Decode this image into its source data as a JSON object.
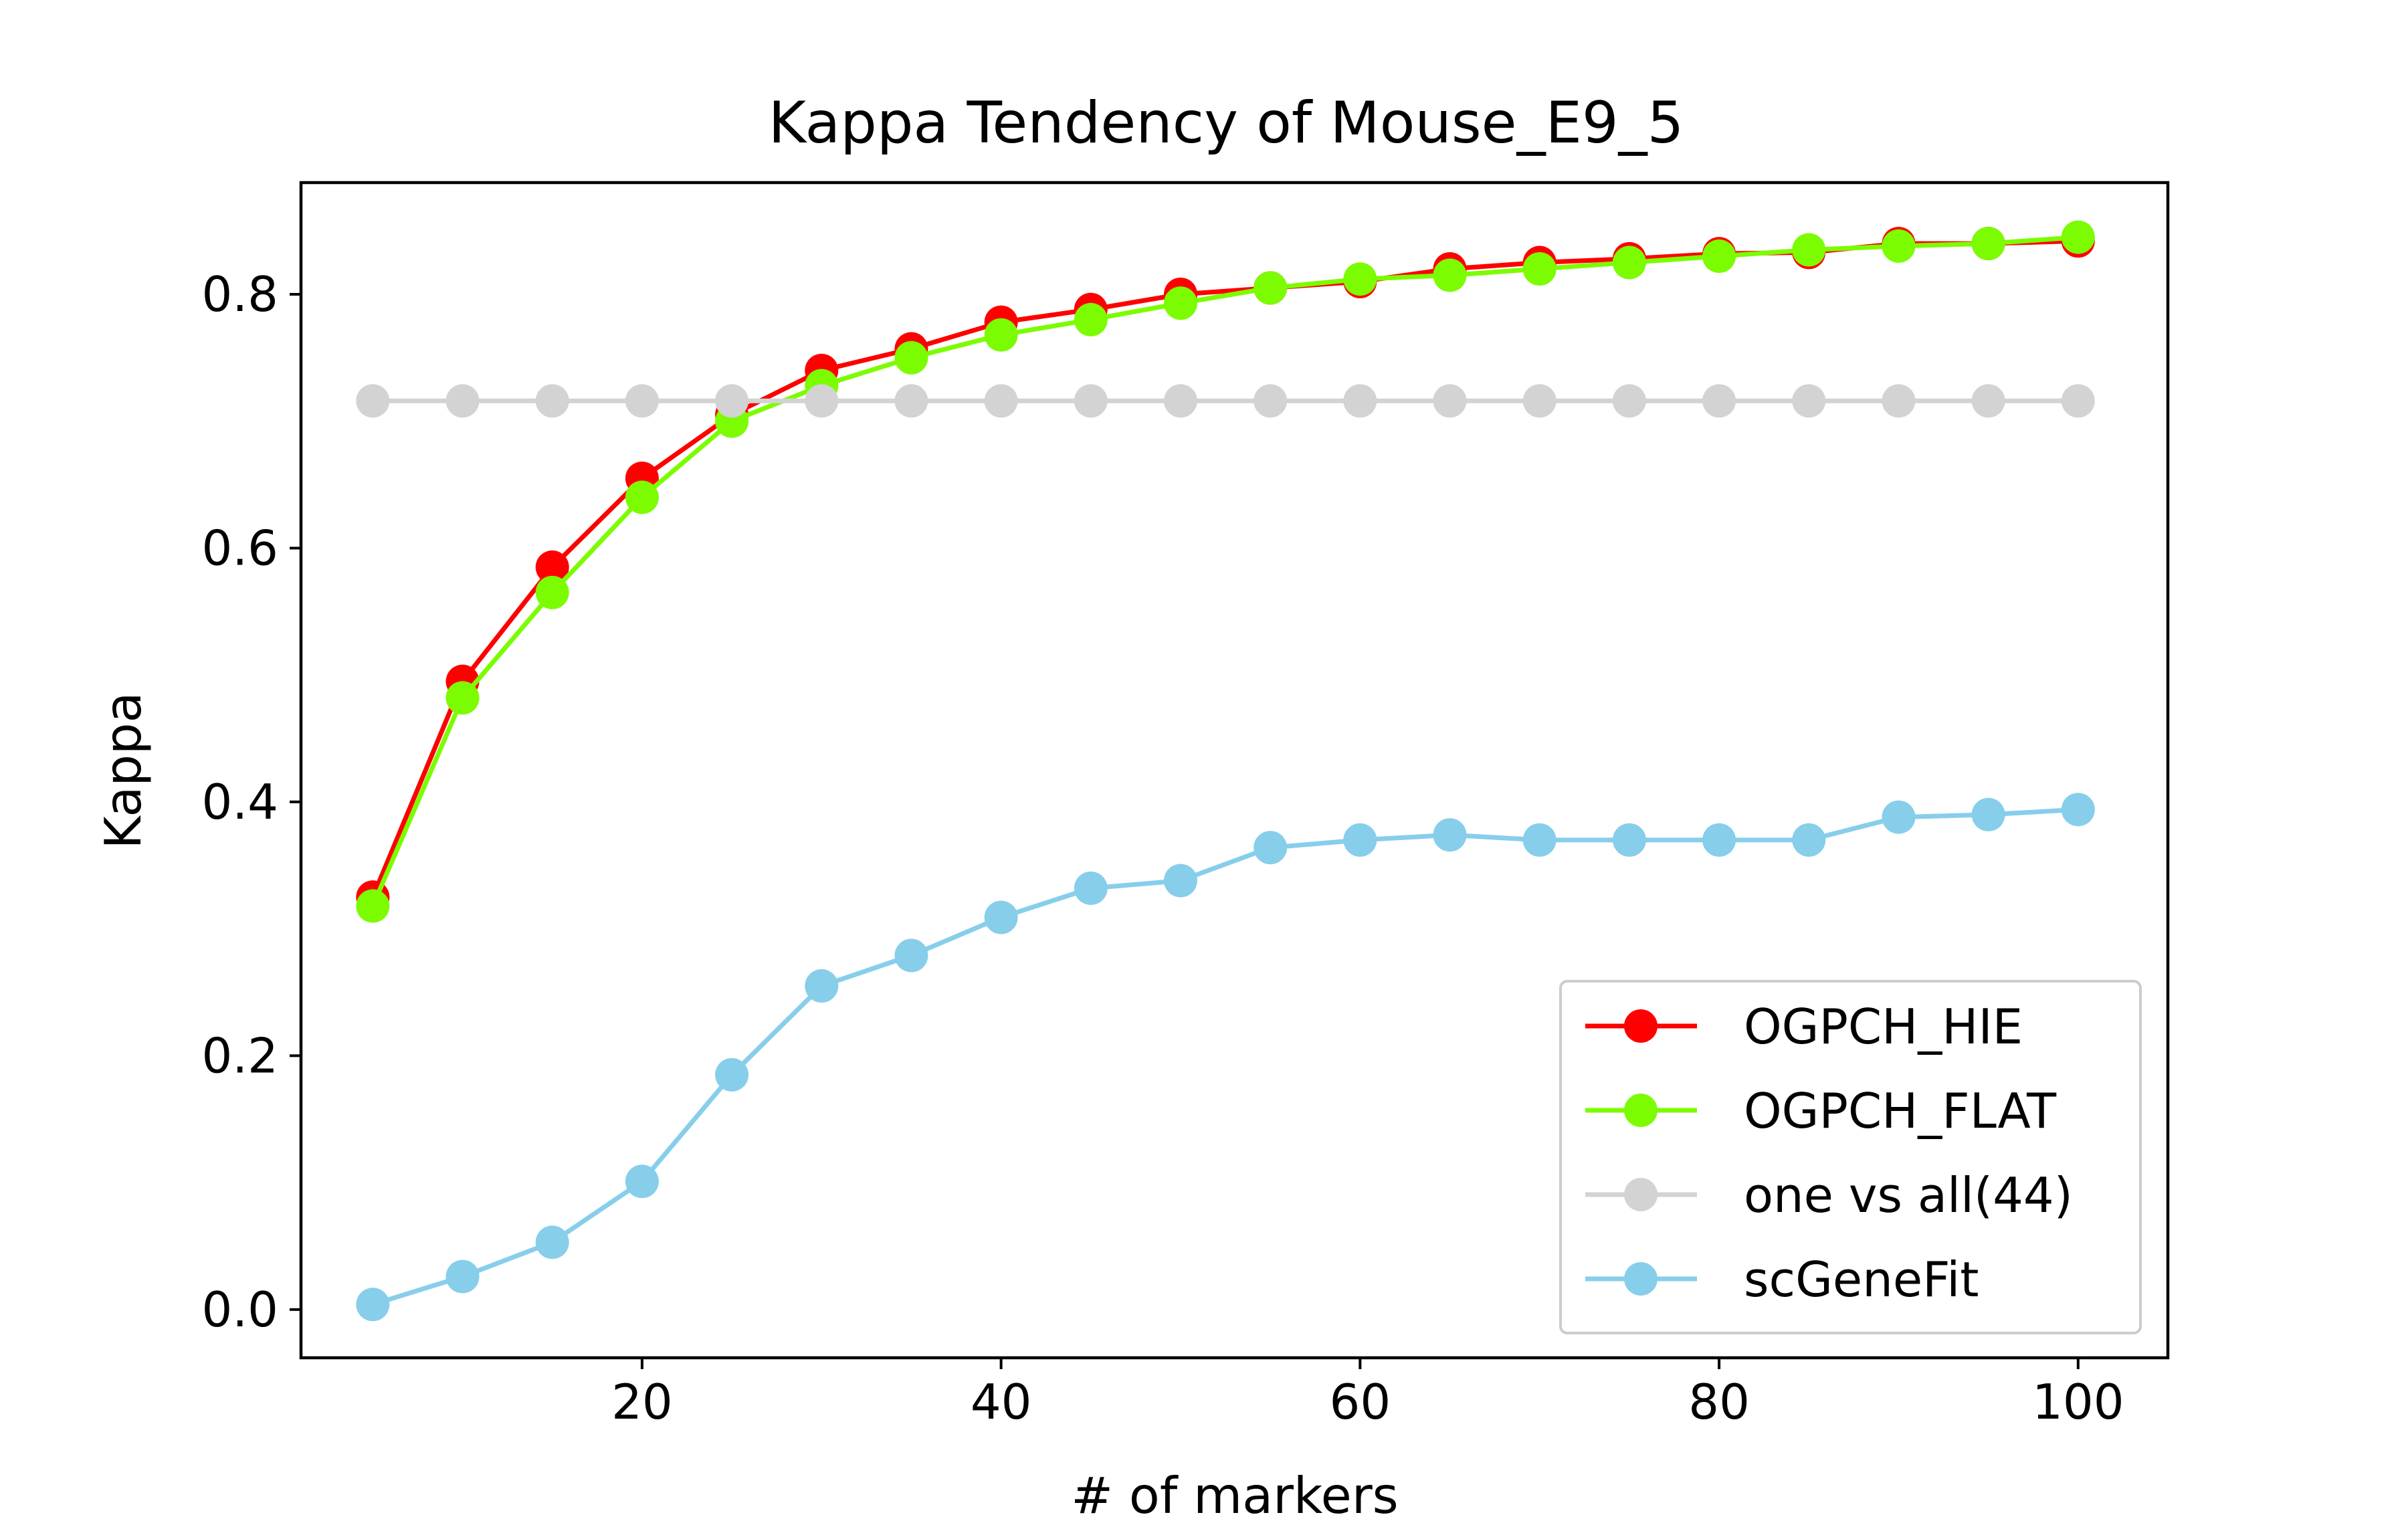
{
  "chart_data": {
    "type": "line",
    "title": "Kappa Tendency of Mouse_E9_5",
    "xlabel": "# of markers",
    "ylabel": "Kappa",
    "xlim": [
      1,
      105
    ],
    "ylim": [
      -0.038,
      0.888
    ],
    "x_ticks": [
      20,
      40,
      60,
      80,
      100
    ],
    "y_ticks": [
      0.0,
      0.2,
      0.4,
      0.6,
      0.8
    ],
    "x_tick_labels": [
      "20",
      "40",
      "60",
      "80",
      "100"
    ],
    "y_tick_labels": [
      "0.0",
      "0.2",
      "0.4",
      "0.6",
      "0.8"
    ],
    "grid": false,
    "legend_position": "lower-right",
    "x": [
      5,
      10,
      15,
      20,
      25,
      30,
      35,
      40,
      45,
      50,
      55,
      60,
      65,
      70,
      75,
      80,
      85,
      90,
      95,
      100
    ],
    "series": [
      {
        "name": "OGPCH_HIE",
        "color": "#ff0000",
        "values": [
          0.325,
          0.495,
          0.585,
          0.655,
          0.705,
          0.74,
          0.757,
          0.778,
          0.788,
          0.8,
          0.805,
          0.81,
          0.82,
          0.825,
          0.828,
          0.832,
          0.833,
          0.84,
          0.84,
          0.842
        ]
      },
      {
        "name": "OGPCH_FLAT",
        "color": "#7cfc00",
        "values": [
          0.318,
          0.482,
          0.565,
          0.64,
          0.7,
          0.728,
          0.75,
          0.768,
          0.78,
          0.793,
          0.805,
          0.812,
          0.815,
          0.82,
          0.825,
          0.83,
          0.835,
          0.838,
          0.84,
          0.845
        ]
      },
      {
        "name": "one vs all(44)",
        "color": "#d3d3d3",
        "values": [
          0.716,
          0.716,
          0.716,
          0.716,
          0.716,
          0.716,
          0.716,
          0.716,
          0.716,
          0.716,
          0.716,
          0.716,
          0.716,
          0.716,
          0.716,
          0.716,
          0.716,
          0.716,
          0.716,
          0.716
        ]
      },
      {
        "name": "scGeneFit",
        "color": "#87ceeb",
        "values": [
          0.004,
          0.026,
          0.053,
          0.101,
          0.185,
          0.255,
          0.279,
          0.309,
          0.332,
          0.338,
          0.364,
          0.37,
          0.374,
          0.37,
          0.37,
          0.37,
          0.37,
          0.388,
          0.39,
          0.394
        ]
      }
    ]
  }
}
